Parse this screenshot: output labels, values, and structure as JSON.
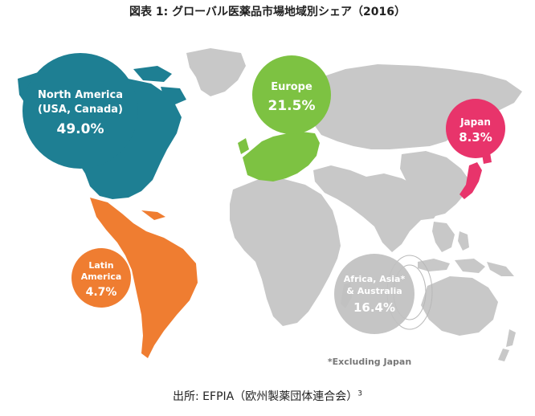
{
  "title": "図表 1: グローバル医薬品市場地域別シェア（2016）",
  "chart_data": {
    "type": "pie",
    "categories": [
      "North America (USA, Canada)",
      "Europe",
      "Japan",
      "Latin America",
      "Africa, Asia* & Australia"
    ],
    "values": [
      49.0,
      21.5,
      8.3,
      4.7,
      16.4
    ],
    "unit": "%",
    "regions": [
      {
        "id": "north-america",
        "lines": [
          "North America",
          "(USA, Canada)"
        ],
        "value": "49.0%",
        "color": "#1e7f93"
      },
      {
        "id": "europe",
        "lines": [
          "Europe"
        ],
        "value": "21.5%",
        "color": "#7dc242"
      },
      {
        "id": "japan",
        "lines": [
          "Japan"
        ],
        "value": "8.3%",
        "color": "#e8346b"
      },
      {
        "id": "latin-america",
        "lines": [
          "Latin",
          "America"
        ],
        "value": "4.7%",
        "color": "#ef7d31"
      },
      {
        "id": "africa-asia-australia",
        "lines": [
          "Africa, Asia*",
          "& Australia"
        ],
        "value": "16.4%",
        "color": "#bdbdbd"
      }
    ],
    "footnote": "*Excluding Japan"
  },
  "source": {
    "text": "出所: EFPIA（欧州製薬団体連合会）",
    "sup": "3"
  }
}
